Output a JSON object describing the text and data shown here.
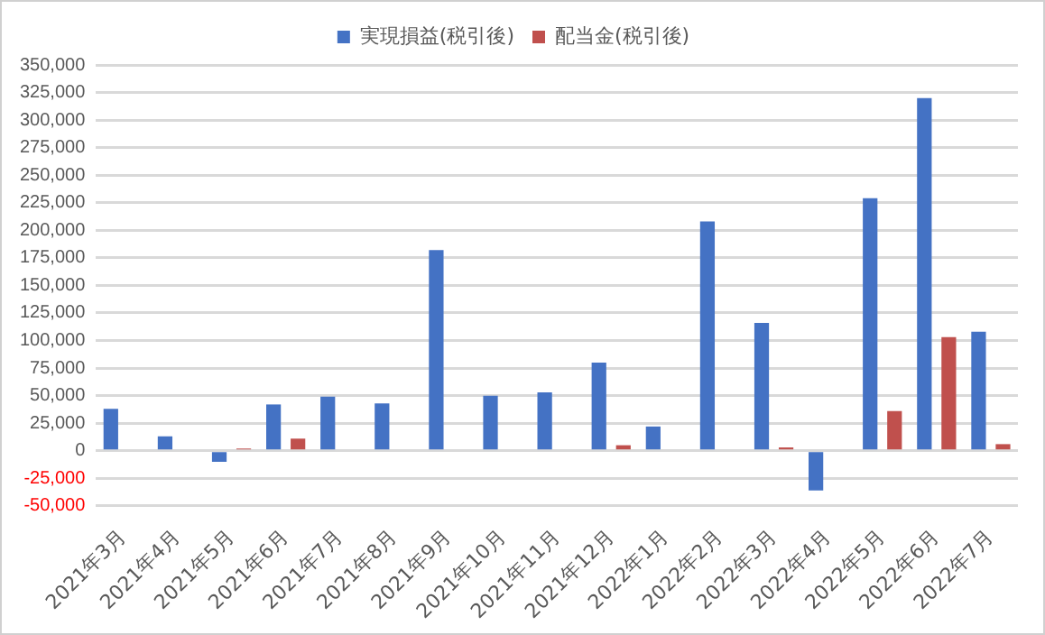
{
  "chart_data": {
    "type": "bar",
    "categories": [
      "2021年3月",
      "2021年4月",
      "2021年5月",
      "2021年6月",
      "2021年7月",
      "2021年8月",
      "2021年9月",
      "2021年10月",
      "2021年11月",
      "2021年12月",
      "2022年1月",
      "2022年2月",
      "2022年3月",
      "2022年4月",
      "2022年5月",
      "2022年6月",
      "2022年7月"
    ],
    "series": [
      {
        "name": "実現損益(税引後)",
        "color": "#4472c4",
        "values": [
          38000,
          13000,
          -10000,
          42000,
          49000,
          43000,
          182000,
          50000,
          53000,
          80000,
          22000,
          208000,
          116000,
          -36000,
          229000,
          320000,
          108000
        ]
      },
      {
        "name": "配当金(税引後)",
        "color": "#c0504d",
        "values": [
          null,
          null,
          2000,
          11000,
          null,
          null,
          null,
          null,
          null,
          5000,
          null,
          null,
          3000,
          null,
          36000,
          103000,
          6000
        ]
      }
    ],
    "ylim": [
      -50000,
      350000
    ],
    "yticks": [
      {
        "value": -50000,
        "label": "-50,000"
      },
      {
        "value": -25000,
        "label": "-25,000"
      },
      0,
      {
        "value": 25000,
        "label": "25,000"
      },
      {
        "value": 50000,
        "label": "50,000"
      },
      {
        "value": 75000,
        "label": "75,000"
      },
      {
        "value": 100000,
        "label": "100,000"
      },
      {
        "value": 125000,
        "label": "125,000"
      },
      {
        "value": 150000,
        "label": "150,000"
      },
      {
        "value": 175000,
        "label": "175,000"
      },
      {
        "value": 200000,
        "label": "200,000"
      },
      {
        "value": 225000,
        "label": "225,000"
      },
      {
        "value": 250000,
        "label": "250,000"
      },
      {
        "value": 275000,
        "label": "275,000"
      },
      {
        "value": 300000,
        "label": "300,000"
      },
      {
        "value": 325000,
        "label": "325,000"
      },
      {
        "value": 350000,
        "label": "350,000"
      }
    ],
    "grid": "y",
    "legend": "top"
  }
}
